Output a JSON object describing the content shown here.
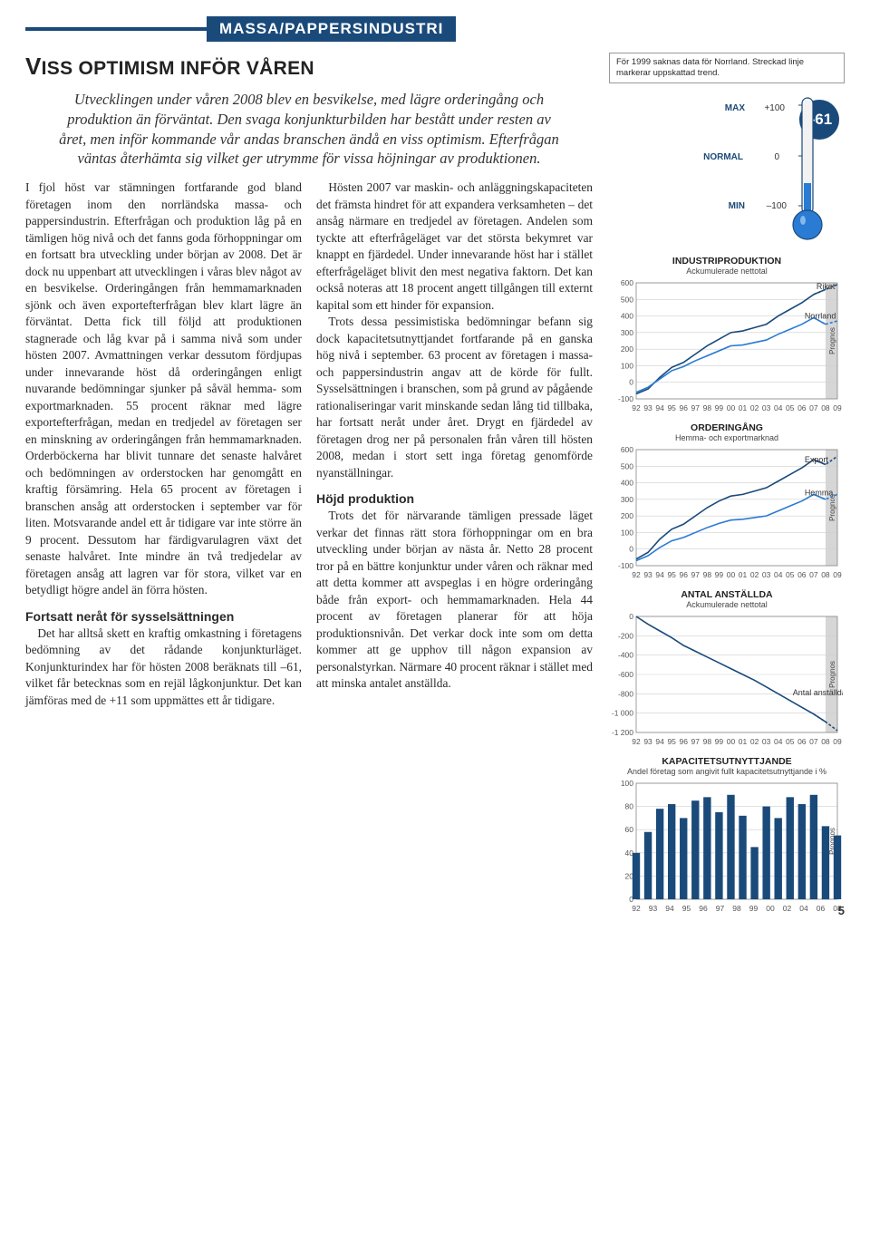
{
  "category": "MASSA/PAPPERSINDUSTRI",
  "headline_main": "V",
  "headline_rest": "ISS OPTIMISM INFÖR VÅREN",
  "lede": "Utvecklingen under våren 2008 blev en besvikelse, med lägre orderingång och produktion än förväntat. Den svaga konjunkturbilden har bestått under resten av året, men inför kommande vår andas branschen ändå en viss optimism. Efterfrågan väntas återhämta sig vilket ger utrymme för vissa höjningar av produktionen.",
  "body_p1": "I fjol höst var stämningen fortfarande god bland företagen inom den norrländska massa- och pappersindustrin. Efterfrågan och produktion låg på en tämligen hög nivå och det fanns goda förhoppningar om en fortsatt bra utveckling under början av 2008. Det är dock nu uppenbart att utvecklingen i våras blev något av en besvikelse. Orderingången från hemmamarknaden sjönk och även exportefterfrågan blev klart lägre än förväntat. Detta fick till följd att produktionen stagnerade och låg kvar på i samma nivå som under hösten 2007. Avmattningen verkar dessutom fördjupas under innevarande höst då orderingången enligt nuvarande bedömningar sjunker på såväl hemma- som exportmarknaden. 55 procent räknar med lägre exportefterfrågan, medan en tredjedel av företagen ser en minskning av orderingången från hemmamarknaden. Orderböckerna har blivit tunnare det senaste halvåret och bedömningen av orderstocken har genomgått en kraftig försämring. Hela 65 procent av företagen i branschen ansåg att orderstocken i september var för liten. Motsvarande andel ett år tidigare var inte större än 9 procent. Dessutom har färdigvarulagren växt det senaste halvåret. Inte mindre än två tredjedelar av företagen ansåg att lagren var för stora, vilket var en betydligt högre andel än förra hösten.",
  "sub1": "Fortsatt neråt för sysselsättningen",
  "body_p2": "Det har alltså skett en kraftig omkastning i företagens bedömning av det rådande konjunkturläget. Konjunkturindex har för hösten 2008 beräknats till –61, vilket får betecknas som en rejäl lågkonjunktur. Det kan jämföras med de +11 som uppmättes ett år tidigare.",
  "body_p3": "Hösten 2007 var maskin- och anläggningskapaciteten det främsta hindret för att expandera verksamheten – det ansåg närmare en tredjedel av företagen. Andelen som tyckte att efterfrågeläget var det största bekymret var knappt en fjärdedel. Under innevarande höst har i stället efterfrågeläget blivit den mest negativa faktorn. Det kan också noteras att 18 procent angett tillgången till externt kapital som ett hinder för expansion.",
  "body_p4": "Trots dessa pessimistiska bedömningar befann sig dock kapacitetsutnyttjandet fortfarande på en ganska hög nivå i september. 63 procent av företagen i massa- och pappersindustrin angav att de körde för fullt. Sysselsättningen i branschen, som på grund av pågående rationaliseringar varit minskande sedan lång tid tillbaka, har fortsatt neråt under året. Drygt en fjärdedel av företagen drog ner på personalen från våren till hösten 2008, medan i stort sett inga företag genomförde nyanställningar.",
  "sub2": "Höjd produktion",
  "body_p5": "Trots det för närvarande tämligen pressade läget verkar det finnas rätt stora förhoppningar om en bra utveckling under början av nästa år. Netto 28 procent tror på en bättre konjunktur under våren och räknar med att detta kommer att avspeglas i en högre orderingång både från export- och hemmamarknaden. Hela 44 procent av företagen planerar för att höja produktionsnivån. Det verkar dock inte som om detta kommer att ge upphov till någon expansion av personalstyrkan. Närmare 40 procent räknar i stället med att minska antalet anställda.",
  "note": "För 1999 saknas data för Norrland. Streckad linje markerar uppskattad trend.",
  "thermo": {
    "max_label": "MAX",
    "max_val": "+100",
    "norm_label": "NORMAL",
    "norm_val": "0",
    "min_label": "MIN",
    "min_val": "–100",
    "badge": "–61",
    "tube_color": "#2a7bd4",
    "bulb_color": "#2a7bd4",
    "outline": "#1a4a7a"
  },
  "years_full": [
    "92",
    "93",
    "94",
    "95",
    "96",
    "97",
    "98",
    "99",
    "00",
    "01",
    "02",
    "03",
    "04",
    "05",
    "06",
    "07",
    "08",
    "09"
  ],
  "years_cap": [
    "92",
    "93",
    "94",
    "95",
    "96",
    "97",
    "98",
    "99",
    "00",
    "02",
    "04",
    "06",
    "08"
  ],
  "chart_axis_color": "#888",
  "chart_grid_color": "#cfcfcf",
  "chart_bg": "#ffffff",
  "chart_line_color": "#1a4a7a",
  "chart_line_color2": "#2a7bd4",
  "chart_proj_fill": "#d6d6d6",
  "prognos_label": "Prognos",
  "chart1": {
    "title": "INDUSTRIPRODUKTION",
    "sub": "Ackumulerade nettotal",
    "ymin": -100,
    "ymax": 600,
    "ystep": 100,
    "series_riket": {
      "label": "Riket",
      "vals": [
        -70,
        -40,
        30,
        90,
        120,
        170,
        220,
        260,
        300,
        310,
        330,
        350,
        400,
        440,
        480,
        530,
        560,
        590
      ]
    },
    "series_norr": {
      "label": "Norrland",
      "vals": [
        -60,
        -30,
        20,
        70,
        95,
        130,
        160,
        190,
        220,
        225,
        240,
        255,
        290,
        320,
        350,
        390,
        350,
        370
      ],
      "dash_from": 6
    }
  },
  "chart2": {
    "title": "ORDERINGÅNG",
    "sub": "Hemma- och exportmarknad",
    "ymin": -100,
    "ymax": 600,
    "ystep": 100,
    "series_export": {
      "label": "Export",
      "vals": [
        -60,
        -20,
        60,
        120,
        150,
        200,
        250,
        290,
        320,
        330,
        350,
        370,
        410,
        450,
        490,
        540,
        510,
        560
      ]
    },
    "series_hemma": {
      "label": "Hemma",
      "vals": [
        -70,
        -40,
        10,
        50,
        70,
        100,
        130,
        155,
        175,
        180,
        190,
        200,
        230,
        260,
        290,
        330,
        300,
        330
      ]
    }
  },
  "chart3": {
    "title": "ANTAL ANSTÄLLDA",
    "sub": "Ackumulerade nettotal",
    "ymin": -1200,
    "ymax": 0,
    "ystep": 200,
    "series": {
      "label": "Antal anställda",
      "vals": [
        0,
        -80,
        -150,
        -220,
        -300,
        -360,
        -420,
        -480,
        -540,
        -600,
        -660,
        -730,
        -800,
        -870,
        -940,
        -1010,
        -1090,
        -1180
      ]
    }
  },
  "chart4": {
    "title": "KAPACITETSUTNYTTJANDE",
    "sub": "Andel företag som angivit fullt kapacitetsutnyttjande i %",
    "ymin": 0,
    "ymax": 100,
    "ystep": 20,
    "bars": [
      40,
      58,
      78,
      82,
      70,
      85,
      88,
      75,
      90,
      72,
      45,
      80,
      70,
      88,
      82,
      90,
      63,
      55
    ],
    "bar_color": "#1a4a7a"
  },
  "page_num": "5"
}
